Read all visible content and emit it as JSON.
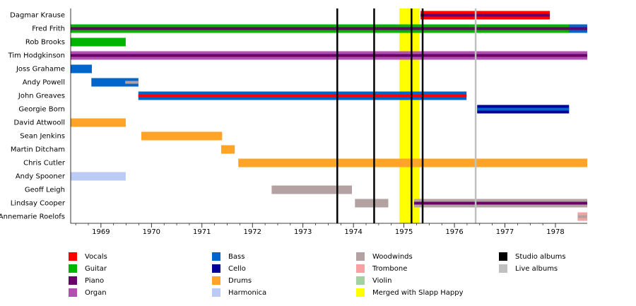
{
  "chart_data": {
    "type": "timeline",
    "roles": [
      {
        "name": "Vocals",
        "color": "#ff0000"
      },
      {
        "name": "Guitar",
        "color": "#00b400"
      },
      {
        "name": "Piano",
        "color": "#6a006a"
      },
      {
        "name": "Organ",
        "color": "#b050b0"
      },
      {
        "name": "Bass",
        "color": "#0066cc"
      },
      {
        "name": "Cello",
        "color": "#000099"
      },
      {
        "name": "Drums",
        "color": "#ffa428"
      },
      {
        "name": "Harmonica",
        "color": "#bccaf6"
      },
      {
        "name": "Woodwinds",
        "color": "#b4a2a2"
      },
      {
        "name": "Trombone",
        "color": "#f6a2a2"
      },
      {
        "name": "Violin",
        "color": "#a2d2a2"
      }
    ],
    "periods": [
      {
        "name": "Merged with Slapp Happy",
        "color": "#ffff00",
        "start": 1974.91,
        "end": 1975.31
      }
    ],
    "markers": [
      {
        "name": "Studio albums",
        "color": "#000000",
        "dates": [
          1973.68,
          1974.41,
          1975.15,
          1975.37
        ]
      },
      {
        "name": "Live albums",
        "color": "#c0c0c0",
        "dates": [
          1976.42
        ]
      }
    ],
    "members": [
      {
        "name": "Dagmar Krause",
        "bars": [
          {
            "role": "Vocals",
            "accent": "Piano",
            "start": 1975.33,
            "end": 1977.89
          }
        ]
      },
      {
        "name": "Fred Frith",
        "bars": [
          {
            "role": "Guitar",
            "accent": "Piano",
            "start": 1968.4,
            "end": 1978.63
          },
          {
            "role": "Bass",
            "accent": "Piano",
            "start": 1978.27,
            "end": 1978.63
          }
        ]
      },
      {
        "name": "Rob Brooks",
        "bars": [
          {
            "role": "Guitar",
            "start": 1968.4,
            "end": 1969.49
          }
        ]
      },
      {
        "name": "Tim Hodgkinson",
        "bars": [
          {
            "role": "Organ",
            "accent": "Piano",
            "start": 1968.4,
            "end": 1978.63
          }
        ]
      },
      {
        "name": "Joss Grahame",
        "bars": [
          {
            "role": "Bass",
            "start": 1968.4,
            "end": 1968.82
          }
        ]
      },
      {
        "name": "Andy Powell",
        "bars": [
          {
            "role": "Bass",
            "start": 1968.81,
            "end": 1969.74
          },
          {
            "role": "Bass",
            "accent": "Woodwinds",
            "start": 1969.48,
            "end": 1969.74
          }
        ]
      },
      {
        "name": "John Greaves",
        "bars": [
          {
            "role": "Bass",
            "accent": "Vocals",
            "start": 1969.74,
            "end": 1976.24
          }
        ]
      },
      {
        "name": "Georgie Born",
        "bars": [
          {
            "role": "Cello",
            "accent": "Bass",
            "start": 1976.45,
            "end": 1978.27
          }
        ]
      },
      {
        "name": "David Attwooll",
        "bars": [
          {
            "role": "Drums",
            "start": 1968.4,
            "end": 1969.49
          }
        ]
      },
      {
        "name": "Sean Jenkins",
        "bars": [
          {
            "role": "Drums",
            "start": 1969.8,
            "end": 1971.4
          }
        ]
      },
      {
        "name": "Martin Ditcham",
        "bars": [
          {
            "role": "Drums",
            "start": 1971.38,
            "end": 1971.65
          }
        ]
      },
      {
        "name": "Chris Cutler",
        "bars": [
          {
            "role": "Drums",
            "start": 1971.72,
            "end": 1978.63
          }
        ]
      },
      {
        "name": "Andy Spooner",
        "bars": [
          {
            "role": "Harmonica",
            "start": 1968.4,
            "end": 1969.49
          }
        ]
      },
      {
        "name": "Geoff Leigh",
        "bars": [
          {
            "role": "Woodwinds",
            "start": 1972.38,
            "end": 1973.97
          }
        ]
      },
      {
        "name": "Lindsay Cooper",
        "bars": [
          {
            "role": "Woodwinds",
            "start": 1974.03,
            "end": 1974.69
          },
          {
            "role": "Woodwinds",
            "accent": "Piano",
            "start": 1975.2,
            "end": 1978.63
          }
        ]
      },
      {
        "name": "Annemarie Roelofs",
        "bars": [
          {
            "role": "Trombone",
            "accent": "Woodwinds",
            "start": 1978.44,
            "end": 1978.63
          }
        ]
      }
    ],
    "xlim": [
      1968.4,
      1978.63
    ],
    "xticks": [
      1969,
      1970,
      1971,
      1972,
      1973,
      1974,
      1975,
      1976,
      1977,
      1978
    ]
  }
}
